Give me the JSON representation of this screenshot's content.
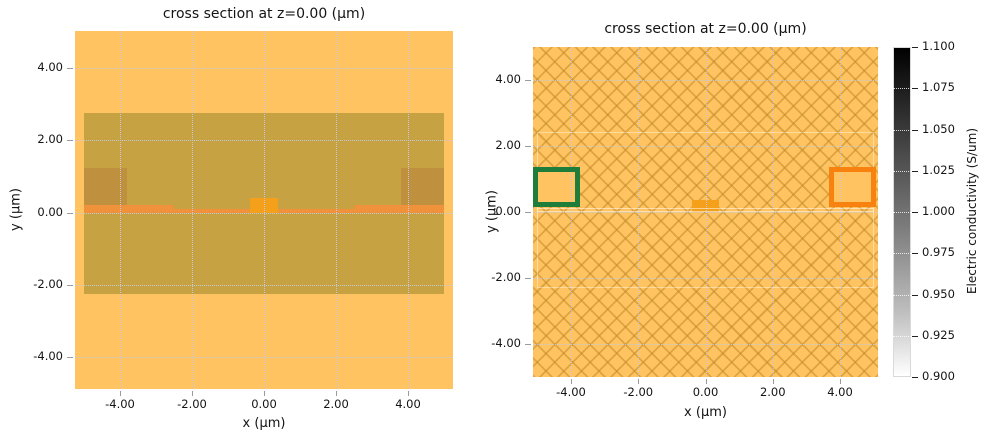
{
  "figure": {
    "background": "#ffffff"
  },
  "palette": {
    "plot_bg": "#FFC361",
    "grid": "#c3c9d8",
    "tick": "#9b9b9b",
    "text": "#141414",
    "hatch_line": "rgba(193,138,39,0.55)",
    "substrate": "#C6A243",
    "via": "#BF903E",
    "conductor": "#F0923B",
    "pad": "#F5A01B",
    "box_fill": "#FFC461",
    "monitor_green": "#1E7D3B",
    "source_orange": "#F8820F",
    "faint_outline": "rgba(255,255,255,0.45)",
    "colorbar_top": "#000000",
    "colorbar_bottom": "#ffffff"
  },
  "chart_data": [
    {
      "type": "heatmap",
      "role": "structure-cross-section",
      "title": "cross section at z=0.00 (μm)",
      "xlabel": "x (μm)",
      "ylabel": "y (μm)",
      "xlim": [
        -5.25,
        5.25
      ],
      "ylim": [
        -4.88,
        5.03
      ],
      "grid": true,
      "hatch": false,
      "x_ticks": [
        {
          "v": -4,
          "label": "-4.00"
        },
        {
          "v": -2,
          "label": "-2.00"
        },
        {
          "v": 0,
          "label": "0.00"
        },
        {
          "v": 2,
          "label": "2.00"
        },
        {
          "v": 4,
          "label": "4.00"
        }
      ],
      "y_ticks": [
        {
          "v": 4,
          "label": "4.00"
        },
        {
          "v": 2,
          "label": "2.00"
        },
        {
          "v": 0,
          "label": "0.00"
        },
        {
          "v": -2,
          "label": "-2.00"
        },
        {
          "v": -4,
          "label": "-4.00"
        }
      ],
      "structures": [
        {
          "name": "substrate-slab",
          "x": [
            -5,
            5
          ],
          "y": [
            -2.25,
            2.75
          ],
          "fill": "#C6A243"
        },
        {
          "name": "via-left",
          "x": [
            -5,
            -3.8
          ],
          "y": [
            0.22,
            1.25
          ],
          "fill": "#BF903E"
        },
        {
          "name": "via-right",
          "x": [
            3.8,
            5
          ],
          "y": [
            0.22,
            1.25
          ],
          "fill": "#BF903E"
        },
        {
          "name": "metal-strip-left",
          "x": [
            -5,
            -2.5
          ],
          "y": [
            0,
            0.22
          ],
          "fill": "#F0923B"
        },
        {
          "name": "metal-strip-right",
          "x": [
            2.5,
            5
          ],
          "y": [
            0,
            0.22
          ],
          "fill": "#F0923B"
        },
        {
          "name": "metal-film",
          "x": [
            -5,
            5
          ],
          "y": [
            0,
            0.11
          ],
          "fill": "#F0923B"
        },
        {
          "name": "center-conductor-pad",
          "x": [
            -0.4,
            0.4
          ],
          "y": [
            0,
            0.42
          ],
          "fill": "#F5A01B"
        }
      ],
      "outlines": []
    },
    {
      "type": "heatmap",
      "role": "electric-conductivity-cross-section",
      "title": "cross section at z=0.00 (μm)",
      "xlabel": "x (μm)",
      "ylabel": "y (μm)",
      "xlim": [
        -5.13,
        5.13
      ],
      "ylim": [
        -5.0,
        5.0
      ],
      "grid": true,
      "hatch": true,
      "x_ticks": [
        {
          "v": -4,
          "label": "-4.00"
        },
        {
          "v": -2,
          "label": "-2.00"
        },
        {
          "v": 0,
          "label": "0.00"
        },
        {
          "v": 2,
          "label": "2.00"
        },
        {
          "v": 4,
          "label": "4.00"
        }
      ],
      "y_ticks": [
        {
          "v": 4,
          "label": "4.00"
        },
        {
          "v": 2,
          "label": "2.00"
        },
        {
          "v": 0,
          "label": "0.00"
        },
        {
          "v": -2,
          "label": "-2.00"
        },
        {
          "v": -4,
          "label": "-4.00"
        }
      ],
      "structures": [
        {
          "name": "port-box-left-fill",
          "x": [
            -5.05,
            -3.8
          ],
          "y": [
            0.22,
            1.28
          ],
          "fill": "#FFC461"
        },
        {
          "name": "port-box-right-fill",
          "x": [
            3.76,
            5.0
          ],
          "y": [
            0.22,
            1.28
          ],
          "fill": "#FFC461"
        },
        {
          "name": "center-conductor-pad",
          "x": [
            -0.4,
            0.4
          ],
          "y": [
            0,
            0.35
          ],
          "fill": "#F5A01B"
        }
      ],
      "outlines": [
        {
          "name": "substrate-outline",
          "x": [
            -5,
            5
          ],
          "y": [
            -2.3,
            2.4
          ],
          "stroke": "rgba(255,255,255,0.4)",
          "width": 1
        },
        {
          "name": "metal-film-outline",
          "x": [
            -5,
            5
          ],
          "y": [
            0,
            0.12
          ],
          "stroke": "rgba(255,255,255,0.5)",
          "width": 1
        },
        {
          "name": "monitor-box-green",
          "x": [
            -5.05,
            -3.8
          ],
          "y": [
            0.22,
            1.28
          ],
          "stroke": "#1E7D3B",
          "width": 5
        },
        {
          "name": "source-box-orange",
          "x": [
            3.76,
            5.0
          ],
          "y": [
            0.22,
            1.28
          ],
          "stroke": "#F8820F",
          "width": 5
        }
      ],
      "colorbar": {
        "label": "Electric conductivity (S/um)",
        "vmin": 0.9,
        "vmax": 1.1,
        "ticks": [
          "1.100",
          "1.075",
          "1.050",
          "1.025",
          "1.000",
          "0.975",
          "0.950",
          "0.925",
          "0.900"
        ]
      }
    }
  ]
}
